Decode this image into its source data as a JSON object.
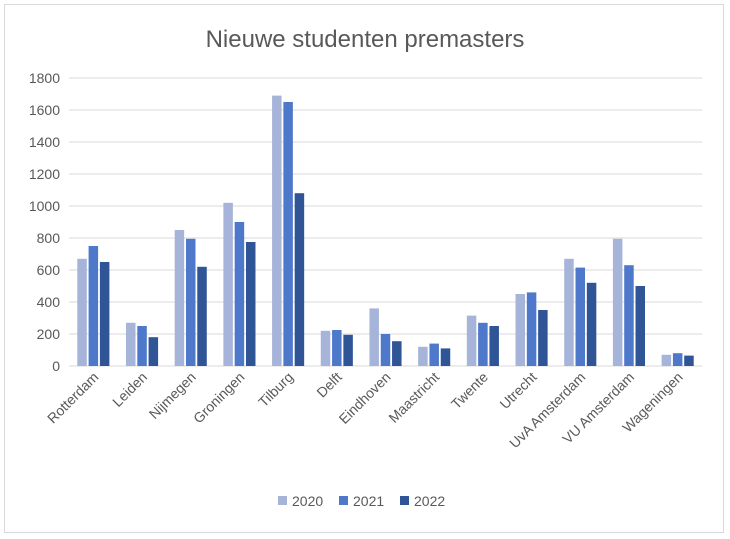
{
  "chart_data": {
    "type": "bar",
    "title": "Nieuwe studenten premasters",
    "xlabel": "",
    "ylabel": "",
    "categories": [
      "Rotterdam",
      "Leiden",
      "Nijmegen",
      "Groningen",
      "Tilburg",
      "Delft",
      "Eindhoven",
      "Maastricht",
      "Twente",
      "Utrecht",
      "UvA Amsterdam",
      "VU Amsterdam",
      "Wageningen"
    ],
    "series": [
      {
        "name": "2020",
        "color": "#a7b4da",
        "values": [
          670,
          270,
          850,
          1020,
          1690,
          220,
          360,
          120,
          315,
          450,
          670,
          795,
          70
        ]
      },
      {
        "name": "2021",
        "color": "#4e78c9",
        "values": [
          750,
          250,
          795,
          900,
          1650,
          225,
          200,
          140,
          270,
          460,
          615,
          630,
          80
        ]
      },
      {
        "name": "2022",
        "color": "#2f5597",
        "values": [
          650,
          180,
          620,
          775,
          1080,
          195,
          155,
          110,
          250,
          350,
          520,
          500,
          65
        ]
      }
    ],
    "ylim": [
      0,
      1800
    ],
    "yticks": [
      0,
      200,
      400,
      600,
      800,
      1000,
      1200,
      1400,
      1600,
      1800
    ],
    "grid": true,
    "legend_position": "bottom"
  }
}
